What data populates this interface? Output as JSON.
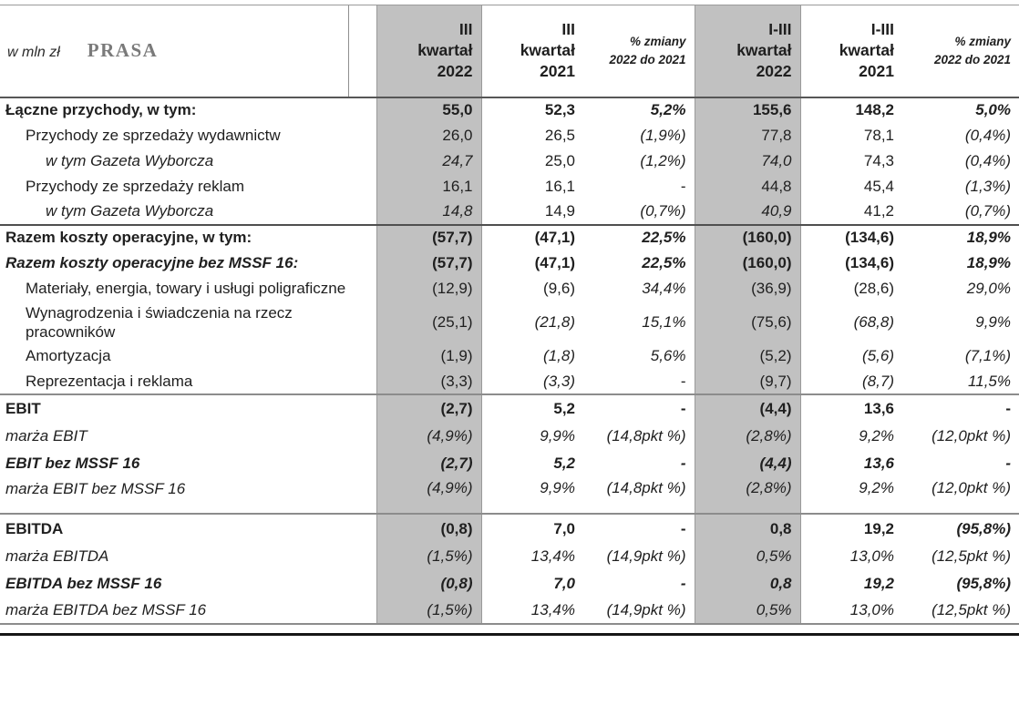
{
  "header": {
    "units_label": "w mln zł",
    "title": "PRASA",
    "columns": [
      "III\nkwartał\n2022",
      "III\nkwartał\n2021",
      "% zmiany\n2022 do 2021",
      "I-III\nkwartał\n2022",
      "I-III\nkwartał\n2021",
      "% zmiany\n2022 do 2021"
    ]
  },
  "colors": {
    "column_highlight": "#c1c1c1",
    "separator_dark": "#4f4f4f",
    "separator_gray": "#8c8c8c",
    "title_gray": "#7a7a7a"
  },
  "table": {
    "rows": [
      {
        "label": "Łączne przychody, w tym:",
        "ls": "b",
        "ind": 0,
        "cells": [
          [
            "55,0",
            "b"
          ],
          [
            "52,3",
            "b"
          ],
          [
            "5,2%",
            "bi"
          ],
          [
            "155,6",
            "b"
          ],
          [
            "148,2",
            "b"
          ],
          [
            "5,0%",
            "bi"
          ]
        ]
      },
      {
        "label": "Przychody ze sprzedaży wydawnictw",
        "ls": "n",
        "ind": 1,
        "cells": [
          [
            "26,0",
            "n"
          ],
          [
            "26,5",
            "n"
          ],
          [
            "(1,9%)",
            "i"
          ],
          [
            "77,8",
            "n"
          ],
          [
            "78,1",
            "n"
          ],
          [
            "(0,4%)",
            "i"
          ]
        ]
      },
      {
        "label": "w tym Gazeta Wyborcza",
        "ls": "i",
        "ind": 2,
        "cells": [
          [
            "24,7",
            "i"
          ],
          [
            "25,0",
            "n"
          ],
          [
            "(1,2%)",
            "i"
          ],
          [
            "74,0",
            "i"
          ],
          [
            "74,3",
            "n"
          ],
          [
            "(0,4%)",
            "i"
          ]
        ]
      },
      {
        "label": "Przychody ze sprzedaży reklam",
        "ls": "n",
        "ind": 1,
        "cells": [
          [
            "16,1",
            "n"
          ],
          [
            "16,1",
            "n"
          ],
          [
            "-",
            "n"
          ],
          [
            "44,8",
            "n"
          ],
          [
            "45,4",
            "n"
          ],
          [
            "(1,3%)",
            "i"
          ]
        ]
      },
      {
        "label": "w tym Gazeta Wyborcza",
        "ls": "i",
        "ind": 2,
        "cells": [
          [
            "14,8",
            "i"
          ],
          [
            "14,9",
            "n"
          ],
          [
            "(0,7%)",
            "i"
          ],
          [
            "40,9",
            "i"
          ],
          [
            "41,2",
            "n"
          ],
          [
            "(0,7%)",
            "i"
          ]
        ]
      },
      {
        "label": "Razem koszty operacyjne, w tym:",
        "ls": "b",
        "ind": 0,
        "sep": "dark",
        "cells": [
          [
            "(57,7)",
            "b"
          ],
          [
            "(47,1)",
            "b"
          ],
          [
            "22,5%",
            "bi"
          ],
          [
            "(160,0)",
            "b"
          ],
          [
            "(134,6)",
            "b"
          ],
          [
            "18,9%",
            "bi"
          ]
        ]
      },
      {
        "label": "Razem koszty operacyjne bez MSSF 16:",
        "ls": "bi",
        "ind": 0,
        "cells": [
          [
            "(57,7)",
            "b"
          ],
          [
            "(47,1)",
            "b"
          ],
          [
            "22,5%",
            "bi"
          ],
          [
            "(160,0)",
            "b"
          ],
          [
            "(134,6)",
            "b"
          ],
          [
            "18,9%",
            "bi"
          ]
        ]
      },
      {
        "label": "Materiały, energia, towary i usługi poligraficzne",
        "ls": "n",
        "ind": 1,
        "cells": [
          [
            "(12,9)",
            "n"
          ],
          [
            "(9,6)",
            "n"
          ],
          [
            "34,4%",
            "i"
          ],
          [
            "(36,9)",
            "n"
          ],
          [
            "(28,6)",
            "n"
          ],
          [
            "29,0%",
            "i"
          ]
        ]
      },
      {
        "label": "Wynagrodzenia i świadczenia na rzecz pracowników",
        "ls": "n",
        "ind": 1,
        "cells": [
          [
            "(25,1)",
            "n"
          ],
          [
            "(21,8)",
            "i"
          ],
          [
            "15,1%",
            "i"
          ],
          [
            "(75,6)",
            "n"
          ],
          [
            "(68,8)",
            "i"
          ],
          [
            "9,9%",
            "i"
          ]
        ]
      },
      {
        "label": "Amortyzacja",
        "ls": "n",
        "ind": 1,
        "cells": [
          [
            "(1,9)",
            "n"
          ],
          [
            "(1,8)",
            "i"
          ],
          [
            "5,6%",
            "i"
          ],
          [
            "(5,2)",
            "n"
          ],
          [
            "(5,6)",
            "i"
          ],
          [
            "(7,1%)",
            "i"
          ]
        ]
      },
      {
        "label": "Reprezentacja i reklama",
        "ls": "n",
        "ind": 1,
        "cells": [
          [
            "(3,3)",
            "n"
          ],
          [
            "(3,3)",
            "i"
          ],
          [
            "-",
            "n"
          ],
          [
            "(9,7)",
            "n"
          ],
          [
            "(8,7)",
            "i"
          ],
          [
            "11,5%",
            "i"
          ]
        ]
      },
      {
        "label": "EBIT",
        "ls": "b",
        "ind": 0,
        "sep": "gray",
        "tall": true,
        "cells": [
          [
            "(2,7)",
            "b"
          ],
          [
            "5,2",
            "b"
          ],
          [
            "-",
            "b"
          ],
          [
            "(4,4)",
            "b"
          ],
          [
            "13,6",
            "b"
          ],
          [
            "-",
            "b"
          ]
        ]
      },
      {
        "label": "marża EBIT",
        "ls": "i",
        "pct": true,
        "cells": [
          [
            "(4,9%)",
            "i"
          ],
          [
            "9,9%",
            "i"
          ],
          [
            "(14,8pkt %)",
            "i"
          ],
          [
            "(2,8%)",
            "i"
          ],
          [
            "9,2%",
            "i"
          ],
          [
            "(12,0pkt %)",
            "i"
          ]
        ]
      },
      {
        "label": "EBIT bez MSSF 16",
        "ls": "bi",
        "pct": true,
        "cells": [
          [
            "(2,7)",
            "bi"
          ],
          [
            "5,2",
            "bi"
          ],
          [
            "-",
            "bi"
          ],
          [
            "(4,4)",
            "bi"
          ],
          [
            "13,6",
            "bi"
          ],
          [
            "-",
            "bi"
          ]
        ]
      },
      {
        "label": "marża EBIT bez MSSF 16",
        "ls": "i",
        "pct": true,
        "gap_after": true,
        "cells": [
          [
            "(4,9%)",
            "i"
          ],
          [
            "9,9%",
            "i"
          ],
          [
            "(14,8pkt %)",
            "i"
          ],
          [
            "(2,8%)",
            "i"
          ],
          [
            "9,2%",
            "i"
          ],
          [
            "(12,0pkt %)",
            "i"
          ]
        ]
      },
      {
        "label": "EBITDA",
        "ls": "b",
        "ind": 0,
        "sep": "gray",
        "tall": true,
        "cells": [
          [
            "(0,8)",
            "b"
          ],
          [
            "7,0",
            "b"
          ],
          [
            "-",
            "b"
          ],
          [
            "0,8",
            "b"
          ],
          [
            "19,2",
            "b"
          ],
          [
            "(95,8%)",
            "bi"
          ]
        ]
      },
      {
        "label": "marża EBITDA",
        "ls": "i",
        "pct": true,
        "cells": [
          [
            "(1,5%)",
            "i"
          ],
          [
            "13,4%",
            "i"
          ],
          [
            "(14,9pkt %)",
            "i"
          ],
          [
            "0,5%",
            "i"
          ],
          [
            "13,0%",
            "i"
          ],
          [
            "(12,5pkt %)",
            "i"
          ]
        ]
      },
      {
        "label": "EBITDA bez MSSF 16",
        "ls": "bi",
        "pct": true,
        "cells": [
          [
            "(0,8)",
            "bi"
          ],
          [
            "7,0",
            "bi"
          ],
          [
            "-",
            "bi"
          ],
          [
            "0,8",
            "bi"
          ],
          [
            "19,2",
            "bi"
          ],
          [
            "(95,8%)",
            "bi"
          ]
        ]
      },
      {
        "label": "marża EBITDA bez MSSF 16",
        "ls": "i",
        "pct": true,
        "cells": [
          [
            "(1,5%)",
            "i"
          ],
          [
            "13,4%",
            "i"
          ],
          [
            "(14,9pkt %)",
            "i"
          ],
          [
            "0,5%",
            "i"
          ],
          [
            "13,0%",
            "i"
          ],
          [
            "(12,5pkt %)",
            "i"
          ]
        ]
      }
    ]
  }
}
